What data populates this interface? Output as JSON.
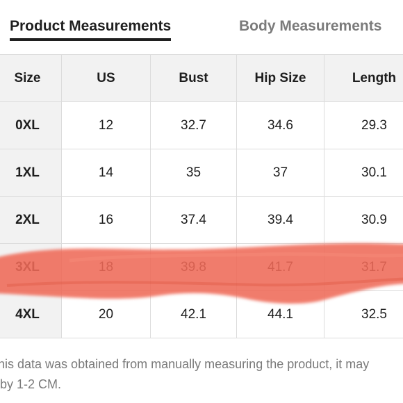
{
  "tabs": [
    {
      "label": "Product Measurements",
      "active": true
    },
    {
      "label": "Body Measurements",
      "active": false
    }
  ],
  "table": {
    "headers": [
      "Size",
      "US",
      "Bust",
      "Hip Size",
      "Length"
    ],
    "rows": [
      {
        "size": "0XL",
        "us": "12",
        "bust": "32.7",
        "hip": "34.6",
        "length": "29.3"
      },
      {
        "size": "1XL",
        "us": "14",
        "bust": "35",
        "hip": "37",
        "length": "30.1"
      },
      {
        "size": "2XL",
        "us": "16",
        "bust": "37.4",
        "hip": "39.4",
        "length": "30.9"
      },
      {
        "size": "3XL",
        "us": "18",
        "bust": "39.8",
        "hip": "41.7",
        "length": "31.7"
      },
      {
        "size": "4XL",
        "us": "20",
        "bust": "42.1",
        "hip": "44.1",
        "length": "32.5"
      }
    ]
  },
  "footnote": {
    "line1": "his data was obtained from manually measuring the product, it may",
    "line2": "by 1-2 CM."
  },
  "colors": {
    "highlight": "#ef6b58",
    "active_tab": "#1f1f1f",
    "inactive_tab": "#7b7b7b",
    "header_bg": "#f2f2f2",
    "border": "#dcdcdc",
    "footnote": "#7a7a7a"
  }
}
